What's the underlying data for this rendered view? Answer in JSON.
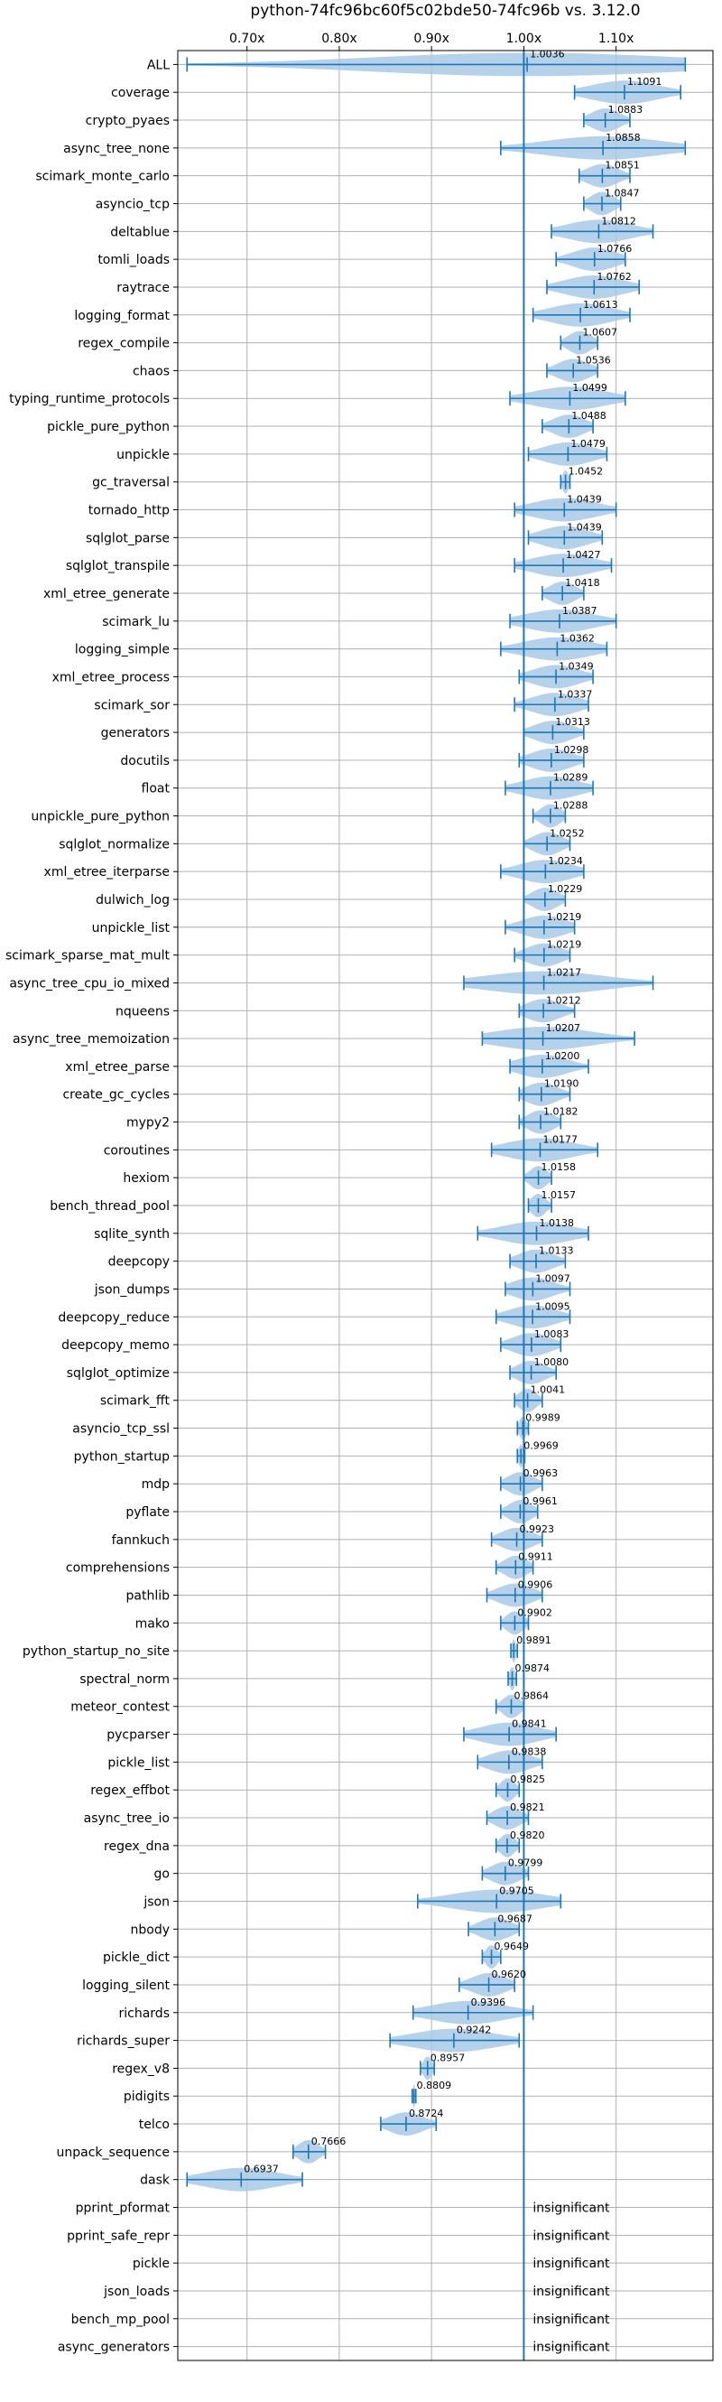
{
  "chart_data": {
    "type": "violin",
    "title": "python-74fc96bc60f5c02bde50-74fc96b vs. 3.12.0",
    "x_ticks": [
      "0.70x",
      "0.80x",
      "0.90x",
      "1.00x",
      "1.10x"
    ],
    "x_tick_values": [
      0.7,
      0.8,
      0.9,
      1.0,
      1.1
    ],
    "xlim": [
      0.625,
      1.205
    ],
    "reference_line": 1.0,
    "grid": true,
    "colors": {
      "violin": "#a9c9e6",
      "line": "#1f77b4"
    },
    "insignificant_label": "insignificant",
    "benchmarks": [
      {
        "name": "ALL",
        "value": 1.0036,
        "label": "1.0036",
        "min": 0.635,
        "max": 1.175
      },
      {
        "name": "coverage",
        "value": 1.1091,
        "label": "1.1091",
        "min": 1.055,
        "max": 1.17
      },
      {
        "name": "crypto_pyaes",
        "value": 1.0883,
        "label": "1.0883",
        "min": 1.065,
        "max": 1.115
      },
      {
        "name": "async_tree_none",
        "value": 1.0858,
        "label": "1.0858",
        "min": 0.975,
        "max": 1.175
      },
      {
        "name": "scimark_monte_carlo",
        "value": 1.0851,
        "label": "1.0851",
        "min": 1.06,
        "max": 1.115
      },
      {
        "name": "asyncio_tcp",
        "value": 1.0847,
        "label": "1.0847",
        "min": 1.065,
        "max": 1.105
      },
      {
        "name": "deltablue",
        "value": 1.0812,
        "label": "1.0812",
        "min": 1.03,
        "max": 1.14
      },
      {
        "name": "tomli_loads",
        "value": 1.0766,
        "label": "1.0766",
        "min": 1.035,
        "max": 1.11
      },
      {
        "name": "raytrace",
        "value": 1.0762,
        "label": "1.0762",
        "min": 1.025,
        "max": 1.125
      },
      {
        "name": "logging_format",
        "value": 1.0613,
        "label": "1.0613",
        "min": 1.01,
        "max": 1.115
      },
      {
        "name": "regex_compile",
        "value": 1.0607,
        "label": "1.0607",
        "min": 1.04,
        "max": 1.08
      },
      {
        "name": "chaos",
        "value": 1.0536,
        "label": "1.0536",
        "min": 1.025,
        "max": 1.08
      },
      {
        "name": "typing_runtime_protocols",
        "value": 1.0499,
        "label": "1.0499",
        "min": 0.985,
        "max": 1.11
      },
      {
        "name": "pickle_pure_python",
        "value": 1.0488,
        "label": "1.0488",
        "min": 1.02,
        "max": 1.075
      },
      {
        "name": "unpickle",
        "value": 1.0479,
        "label": "1.0479",
        "min": 1.005,
        "max": 1.09
      },
      {
        "name": "gc_traversal",
        "value": 1.0452,
        "label": "1.0452",
        "min": 1.04,
        "max": 1.05
      },
      {
        "name": "tornado_http",
        "value": 1.0439,
        "label": "1.0439",
        "min": 0.99,
        "max": 1.1
      },
      {
        "name": "sqlglot_parse",
        "value": 1.0439,
        "label": "1.0439",
        "min": 1.005,
        "max": 1.085
      },
      {
        "name": "sqlglot_transpile",
        "value": 1.0427,
        "label": "1.0427",
        "min": 0.99,
        "max": 1.095
      },
      {
        "name": "xml_etree_generate",
        "value": 1.0418,
        "label": "1.0418",
        "min": 1.02,
        "max": 1.065
      },
      {
        "name": "scimark_lu",
        "value": 1.0387,
        "label": "1.0387",
        "min": 0.985,
        "max": 1.1
      },
      {
        "name": "logging_simple",
        "value": 1.0362,
        "label": "1.0362",
        "min": 0.975,
        "max": 1.09
      },
      {
        "name": "xml_etree_process",
        "value": 1.0349,
        "label": "1.0349",
        "min": 0.995,
        "max": 1.075
      },
      {
        "name": "scimark_sor",
        "value": 1.0337,
        "label": "1.0337",
        "min": 0.99,
        "max": 1.07
      },
      {
        "name": "generators",
        "value": 1.0313,
        "label": "1.0313",
        "min": 1.0,
        "max": 1.065
      },
      {
        "name": "docutils",
        "value": 1.0298,
        "label": "1.0298",
        "min": 0.995,
        "max": 1.065
      },
      {
        "name": "float",
        "value": 1.0289,
        "label": "1.0289",
        "min": 0.98,
        "max": 1.075
      },
      {
        "name": "unpickle_pure_python",
        "value": 1.0288,
        "label": "1.0288",
        "min": 1.01,
        "max": 1.045
      },
      {
        "name": "sqlglot_normalize",
        "value": 1.0252,
        "label": "1.0252",
        "min": 1.0,
        "max": 1.05
      },
      {
        "name": "xml_etree_iterparse",
        "value": 1.0234,
        "label": "1.0234",
        "min": 0.975,
        "max": 1.065
      },
      {
        "name": "dulwich_log",
        "value": 1.0229,
        "label": "1.0229",
        "min": 1.0,
        "max": 1.045
      },
      {
        "name": "unpickle_list",
        "value": 1.0219,
        "label": "1.0219",
        "min": 0.98,
        "max": 1.055
      },
      {
        "name": "scimark_sparse_mat_mult",
        "value": 1.0219,
        "label": "1.0219",
        "min": 0.99,
        "max": 1.05
      },
      {
        "name": "async_tree_cpu_io_mixed",
        "value": 1.0217,
        "label": "1.0217",
        "min": 0.935,
        "max": 1.14
      },
      {
        "name": "nqueens",
        "value": 1.0212,
        "label": "1.0212",
        "min": 0.995,
        "max": 1.055
      },
      {
        "name": "async_tree_memoization",
        "value": 1.0207,
        "label": "1.0207",
        "min": 0.955,
        "max": 1.12
      },
      {
        "name": "xml_etree_parse",
        "value": 1.02,
        "label": "1.0200",
        "min": 0.985,
        "max": 1.07
      },
      {
        "name": "create_gc_cycles",
        "value": 1.019,
        "label": "1.0190",
        "min": 0.995,
        "max": 1.05
      },
      {
        "name": "mypy2",
        "value": 1.0182,
        "label": "1.0182",
        "min": 0.995,
        "max": 1.04
      },
      {
        "name": "coroutines",
        "value": 1.0177,
        "label": "1.0177",
        "min": 0.965,
        "max": 1.08
      },
      {
        "name": "hexiom",
        "value": 1.0158,
        "label": "1.0158",
        "min": 1.0,
        "max": 1.03
      },
      {
        "name": "bench_thread_pool",
        "value": 1.0157,
        "label": "1.0157",
        "min": 1.005,
        "max": 1.03
      },
      {
        "name": "sqlite_synth",
        "value": 1.0138,
        "label": "1.0138",
        "min": 0.95,
        "max": 1.07
      },
      {
        "name": "deepcopy",
        "value": 1.0133,
        "label": "1.0133",
        "min": 0.985,
        "max": 1.045
      },
      {
        "name": "json_dumps",
        "value": 1.0097,
        "label": "1.0097",
        "min": 0.98,
        "max": 1.05
      },
      {
        "name": "deepcopy_reduce",
        "value": 1.0095,
        "label": "1.0095",
        "min": 0.97,
        "max": 1.05
      },
      {
        "name": "deepcopy_memo",
        "value": 1.0083,
        "label": "1.0083",
        "min": 0.975,
        "max": 1.04
      },
      {
        "name": "sqlglot_optimize",
        "value": 1.008,
        "label": "1.0080",
        "min": 0.985,
        "max": 1.035
      },
      {
        "name": "scimark_fft",
        "value": 1.0041,
        "label": "1.0041",
        "min": 0.99,
        "max": 1.02
      },
      {
        "name": "asyncio_tcp_ssl",
        "value": 0.9989,
        "label": "0.9989",
        "min": 0.993,
        "max": 1.005
      },
      {
        "name": "python_startup",
        "value": 0.9969,
        "label": "0.9969",
        "min": 0.993,
        "max": 1.001
      },
      {
        "name": "mdp",
        "value": 0.9963,
        "label": "0.9963",
        "min": 0.975,
        "max": 1.02
      },
      {
        "name": "pyflate",
        "value": 0.9961,
        "label": "0.9961",
        "min": 0.975,
        "max": 1.015
      },
      {
        "name": "fannkuch",
        "value": 0.9923,
        "label": "0.9923",
        "min": 0.965,
        "max": 1.02
      },
      {
        "name": "comprehensions",
        "value": 0.9911,
        "label": "0.9911",
        "min": 0.97,
        "max": 1.01
      },
      {
        "name": "pathlib",
        "value": 0.9906,
        "label": "0.9906",
        "min": 0.96,
        "max": 1.02
      },
      {
        "name": "mako",
        "value": 0.9902,
        "label": "0.9902",
        "min": 0.975,
        "max": 1.005
      },
      {
        "name": "python_startup_no_site",
        "value": 0.9891,
        "label": "0.9891",
        "min": 0.986,
        "max": 0.993
      },
      {
        "name": "spectral_norm",
        "value": 0.9874,
        "label": "0.9874",
        "min": 0.983,
        "max": 0.992
      },
      {
        "name": "meteor_contest",
        "value": 0.9864,
        "label": "0.9864",
        "min": 0.97,
        "max": 1.0
      },
      {
        "name": "pycparser",
        "value": 0.9841,
        "label": "0.9841",
        "min": 0.935,
        "max": 1.035
      },
      {
        "name": "pickle_list",
        "value": 0.9838,
        "label": "0.9838",
        "min": 0.95,
        "max": 1.02
      },
      {
        "name": "regex_effbot",
        "value": 0.9825,
        "label": "0.9825",
        "min": 0.97,
        "max": 0.995
      },
      {
        "name": "async_tree_io",
        "value": 0.9821,
        "label": "0.9821",
        "min": 0.96,
        "max": 1.005
      },
      {
        "name": "regex_dna",
        "value": 0.982,
        "label": "0.9820",
        "min": 0.97,
        "max": 0.995
      },
      {
        "name": "go",
        "value": 0.9799,
        "label": "0.9799",
        "min": 0.955,
        "max": 1.005
      },
      {
        "name": "json",
        "value": 0.9705,
        "label": "0.9705",
        "min": 0.885,
        "max": 1.04
      },
      {
        "name": "nbody",
        "value": 0.9687,
        "label": "0.9687",
        "min": 0.94,
        "max": 0.995
      },
      {
        "name": "pickle_dict",
        "value": 0.9649,
        "label": "0.9649",
        "min": 0.955,
        "max": 0.975
      },
      {
        "name": "logging_silent",
        "value": 0.962,
        "label": "0.9620",
        "min": 0.93,
        "max": 0.99
      },
      {
        "name": "richards",
        "value": 0.9396,
        "label": "0.9396",
        "min": 0.88,
        "max": 1.01
      },
      {
        "name": "richards_super",
        "value": 0.9242,
        "label": "0.9242",
        "min": 0.855,
        "max": 0.995
      },
      {
        "name": "regex_v8",
        "value": 0.8957,
        "label": "0.8957",
        "min": 0.888,
        "max": 0.903
      },
      {
        "name": "pidigits",
        "value": 0.8809,
        "label": "0.8809",
        "min": 0.879,
        "max": 0.883
      },
      {
        "name": "telco",
        "value": 0.8724,
        "label": "0.8724",
        "min": 0.845,
        "max": 0.905
      },
      {
        "name": "unpack_sequence",
        "value": 0.7666,
        "label": "0.7666",
        "min": 0.75,
        "max": 0.785
      },
      {
        "name": "dask",
        "value": 0.6937,
        "label": "0.6937",
        "min": 0.635,
        "max": 0.76
      },
      {
        "name": "pprint_pformat",
        "value": null,
        "label": "insignificant"
      },
      {
        "name": "pprint_safe_repr",
        "value": null,
        "label": "insignificant"
      },
      {
        "name": "pickle",
        "value": null,
        "label": "insignificant"
      },
      {
        "name": "json_loads",
        "value": null,
        "label": "insignificant"
      },
      {
        "name": "bench_mp_pool",
        "value": null,
        "label": "insignificant"
      },
      {
        "name": "async_generators",
        "value": null,
        "label": "insignificant"
      }
    ]
  }
}
